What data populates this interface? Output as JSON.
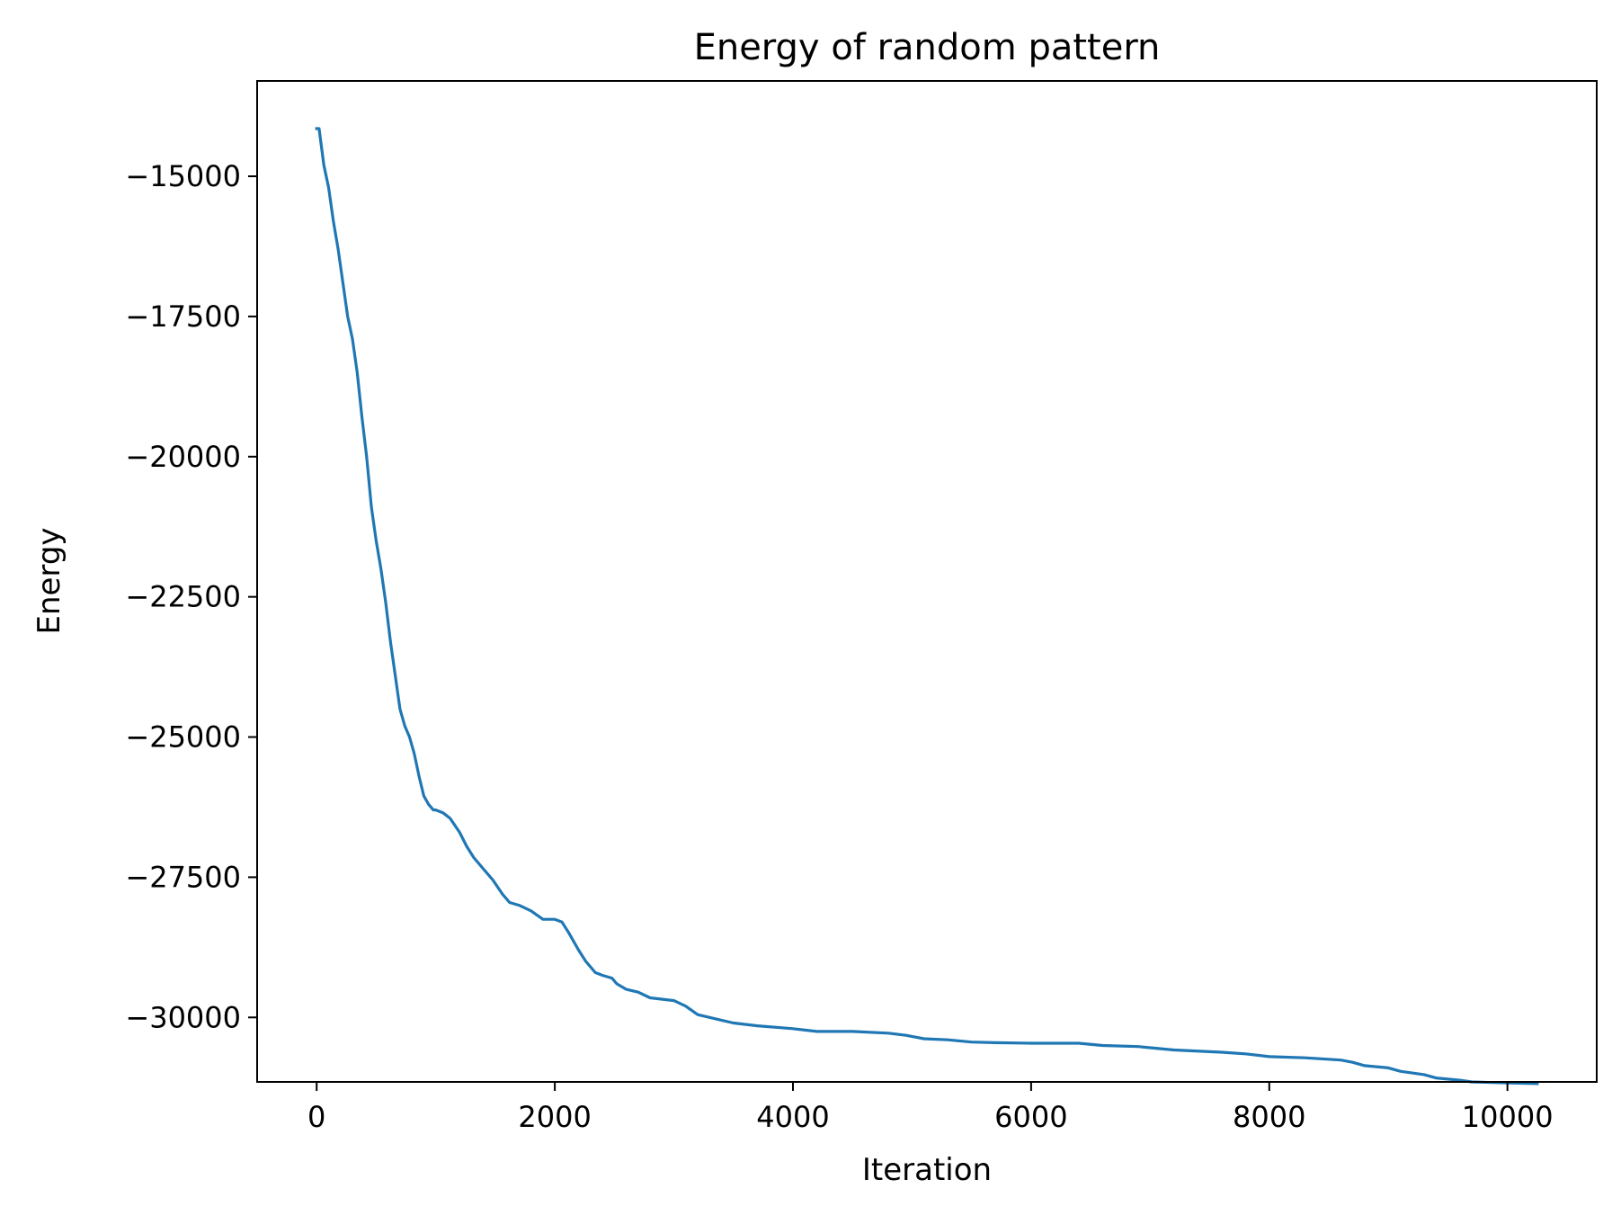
{
  "chart_data": {
    "type": "line",
    "title": "Energy of random pattern",
    "xlabel": "Iteration",
    "ylabel": "Energy",
    "xlim": [
      -500,
      10750
    ],
    "ylim": [
      -31150,
      -13300
    ],
    "xticks": [
      0,
      2000,
      4000,
      6000,
      8000,
      10000
    ],
    "yticks": [
      -15000,
      -17500,
      -20000,
      -22500,
      -25000,
      -27500,
      -30000
    ],
    "xtick_labels": [
      "0",
      "2000",
      "4000",
      "6000",
      "8000",
      "10000"
    ],
    "ytick_labels": [
      "−15000",
      "−17500",
      "−20000",
      "−22500",
      "−25000",
      "−27500",
      "−30000"
    ],
    "grid": false,
    "line_color": "#1f77b4",
    "series": [
      {
        "x": [
          0,
          20,
          60,
          100,
          140,
          180,
          220,
          260,
          300,
          340,
          380,
          420,
          460,
          500,
          540,
          580,
          620,
          660,
          700,
          740,
          780,
          820,
          860,
          900,
          940,
          980,
          1000,
          1060,
          1120,
          1200,
          1260,
          1320,
          1400,
          1480,
          1560,
          1620,
          1700,
          1800,
          1900,
          2000,
          2060,
          2120,
          2200,
          2260,
          2340,
          2400,
          2480,
          2520,
          2600,
          2700,
          2800,
          3000,
          3100,
          3200,
          3400,
          3500,
          3700,
          4000,
          4200,
          4500,
          4800,
          4950,
          5100,
          5300,
          5500,
          5700,
          6000,
          6400,
          6600,
          6900,
          7000,
          7200,
          7600,
          7800,
          8000,
          8300,
          8600,
          8700,
          8800,
          9000,
          9100,
          9300,
          9400,
          9600,
          9700,
          10000,
          10250
        ],
        "y": [
          -14150,
          -14150,
          -14800,
          -15200,
          -15800,
          -16300,
          -16900,
          -17500,
          -17900,
          -18500,
          -19300,
          -20000,
          -20900,
          -21500,
          -22000,
          -22600,
          -23300,
          -23900,
          -24500,
          -24800,
          -25000,
          -25300,
          -25700,
          -26050,
          -26200,
          -26300,
          -26300,
          -26350,
          -26450,
          -26700,
          -26950,
          -27150,
          -27350,
          -27550,
          -27800,
          -27950,
          -28000,
          -28100,
          -28250,
          -28250,
          -28300,
          -28500,
          -28800,
          -29000,
          -29200,
          -29250,
          -29300,
          -29400,
          -29500,
          -29550,
          -29650,
          -29700,
          -29800,
          -29950,
          -30050,
          -30100,
          -30150,
          -30200,
          -30250,
          -30250,
          -30280,
          -30320,
          -30380,
          -30400,
          -30440,
          -30450,
          -30460,
          -30460,
          -30500,
          -30520,
          -30540,
          -30580,
          -30620,
          -30650,
          -30700,
          -30720,
          -30760,
          -30800,
          -30860,
          -30900,
          -30960,
          -31020,
          -31080,
          -31120,
          -31150,
          -31170,
          -31180
        ]
      }
    ]
  }
}
